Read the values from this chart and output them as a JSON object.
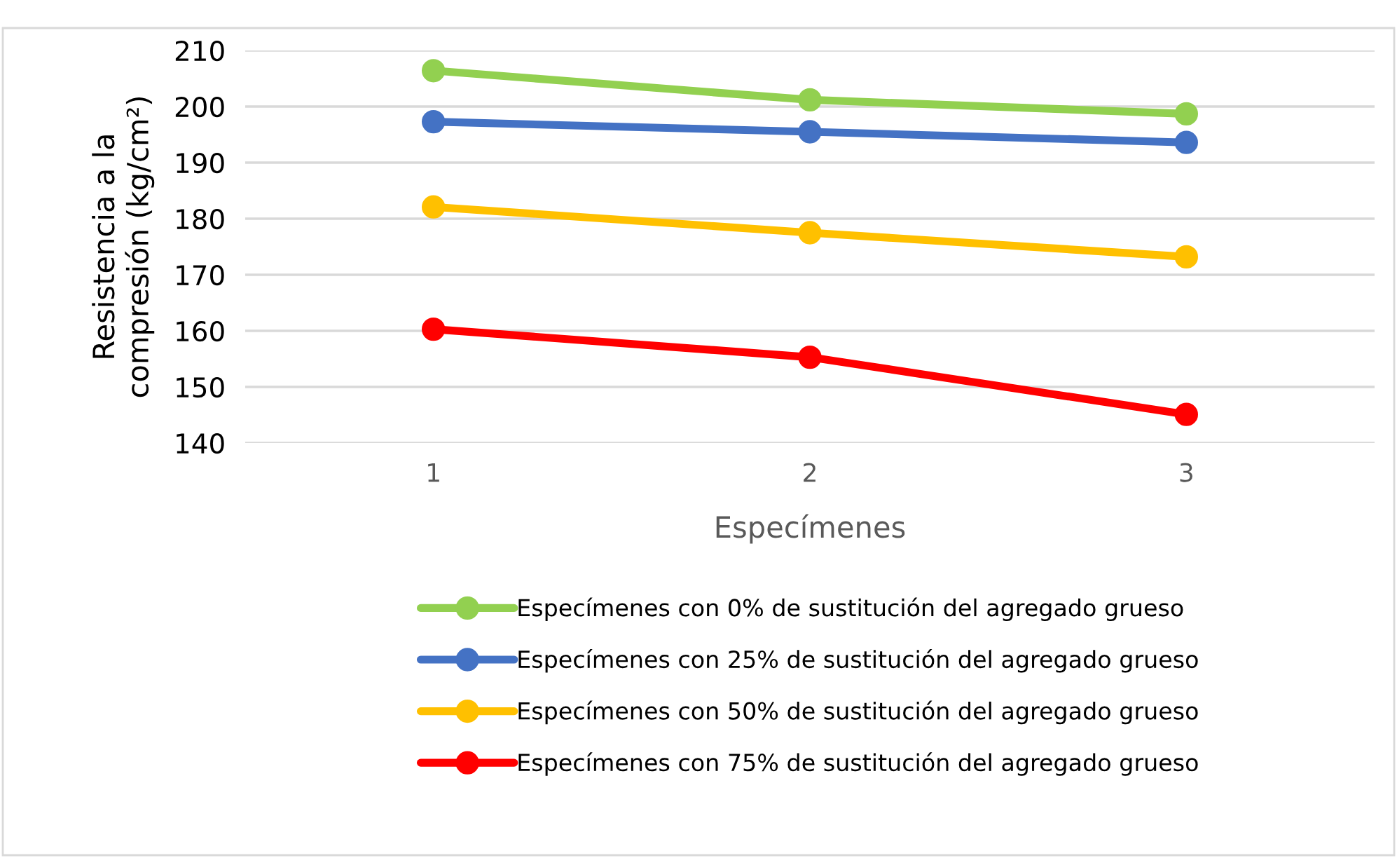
{
  "chart_data": {
    "type": "line",
    "xlabel": "Especímenes",
    "ylabel": "Resistencia a la\ncompresión (kg/cm²)",
    "categories": [
      "1",
      "2",
      "3"
    ],
    "series": [
      {
        "name": "Especímenes con 0% de sustitución del agregado grueso",
        "color": "#92d050",
        "values": [
          206.4,
          201.2,
          198.7
        ]
      },
      {
        "name": "Especímenes con 25% de sustitución del agregado grueso",
        "color": "#4472c4",
        "values": [
          197.3,
          195.5,
          193.6
        ]
      },
      {
        "name": "Especímenes con 50% de sustitución del agregado grueso",
        "color": "#ffc000",
        "values": [
          182.1,
          177.5,
          173.2
        ]
      },
      {
        "name": "Especímenes con 75% de sustitución del agregado grueso",
        "color": "#ff0000",
        "values": [
          160.3,
          155.3,
          145.1
        ]
      }
    ],
    "ylim": [
      140,
      210
    ],
    "yticks": [
      140,
      150,
      160,
      170,
      180,
      190,
      200,
      210
    ],
    "grid": "y",
    "legend": "bottom",
    "marker": "circle",
    "line_style": "solid"
  }
}
